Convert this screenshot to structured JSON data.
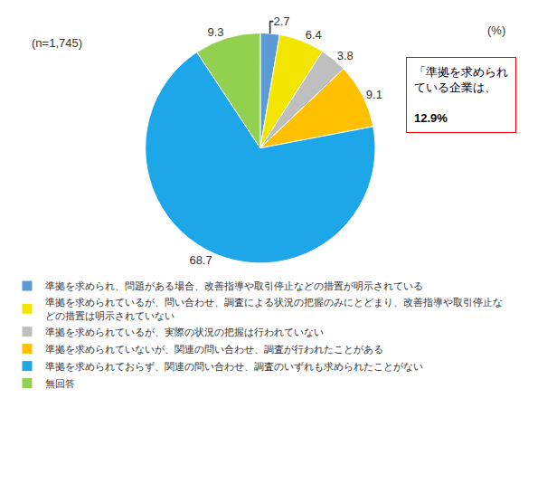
{
  "chart_data": {
    "type": "pie",
    "categories": [
      "準拠を求められ、問題がある場合、改善指導や取引停止などの措置が明示されている",
      "準拠を求められているが、問い合わせ、調査による状況の把握のみにとどまり、改善指導や取引停止などの措置は明示されていない",
      "準拠を求められているが、実際の状況の把握は行われていない",
      "準拠を求められていないが、関連の問い合わせ、調査が行われたことがある",
      "準拠を求められておらず、関連の問い合わせ、調査のいずれも求められたことがない",
      "無回答"
    ],
    "values": [
      2.7,
      6.4,
      3.8,
      9.1,
      68.7,
      9.3
    ],
    "colors": [
      "#5b9bd5",
      "#f2e600",
      "#bfbfbf",
      "#ffc000",
      "#1ea7e8",
      "#92d050"
    ],
    "data_labels": true,
    "legend": "bottom",
    "annotations": [
      "(n=1,745)",
      "(%)",
      "「準拠を求められている企業は、",
      "12.9%"
    ]
  }
}
